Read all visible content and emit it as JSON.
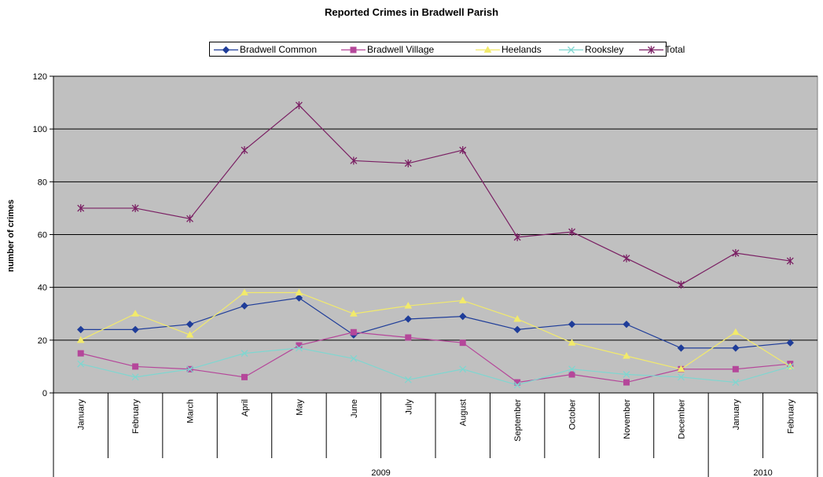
{
  "chart_data": {
    "type": "line",
    "title": "Reported Crimes in Bradwell Parish",
    "ylabel": "number of crimes",
    "xlabel": "",
    "ylim": [
      0,
      120
    ],
    "yticks": [
      0,
      20,
      40,
      60,
      80,
      100,
      120
    ],
    "grid": true,
    "legend_position": "top",
    "categories": [
      "January",
      "February",
      "March",
      "April",
      "May",
      "June",
      "July",
      "August",
      "September",
      "October",
      "November",
      "December",
      "January",
      "February"
    ],
    "year_groups": [
      {
        "label": "2009",
        "span": 12
      },
      {
        "label": "2010",
        "span": 2
      }
    ],
    "series": [
      {
        "name": "Bradwell Common",
        "color": "#1f3d99",
        "marker": "diamond",
        "values": [
          24,
          24,
          26,
          33,
          36,
          22,
          28,
          29,
          24,
          26,
          26,
          17,
          17,
          19
        ]
      },
      {
        "name": "Bradwell Village",
        "color": "#b5479a",
        "marker": "square",
        "values": [
          15,
          10,
          9,
          6,
          18,
          23,
          21,
          19,
          4,
          7,
          4,
          9,
          9,
          11
        ]
      },
      {
        "name": "Heelands",
        "color": "#f2ea6b",
        "marker": "triangle",
        "values": [
          20,
          30,
          22,
          38,
          38,
          30,
          33,
          35,
          28,
          19,
          14,
          9,
          23,
          10
        ]
      },
      {
        "name": "Rooksley",
        "color": "#7fd6d0",
        "marker": "x",
        "values": [
          11,
          6,
          9,
          15,
          17,
          13,
          5,
          9,
          3,
          9,
          7,
          6,
          4,
          10
        ]
      },
      {
        "name": "Total",
        "color": "#7a1f63",
        "marker": "star",
        "values": [
          70,
          70,
          66,
          92,
          109,
          88,
          87,
          92,
          59,
          61,
          51,
          41,
          53,
          50
        ]
      }
    ],
    "plot_background": "#c0c0c0"
  }
}
